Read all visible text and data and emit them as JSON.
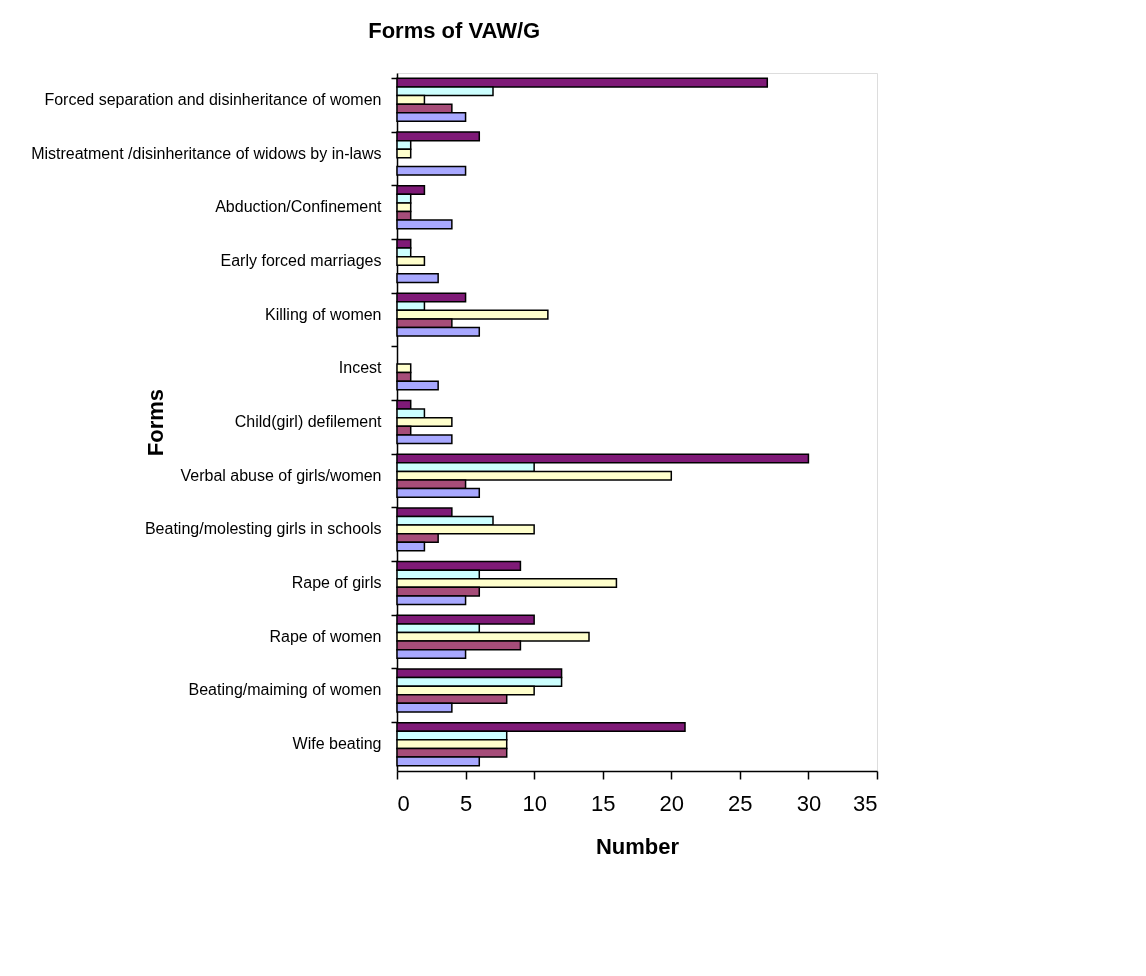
{
  "chart_data": {
    "type": "bar",
    "orientation": "horizontal",
    "title": "Forms of VAW/G",
    "xlabel": "Number",
    "ylabel": "Forms",
    "categories": [
      "Forced separation and disinheritance of women",
      "Mistreatment /disinheritance of widows by in-laws",
      "Abduction/Confinement",
      "Early forced marriages",
      "Killing of women",
      "Incest",
      "Child(girl) defilement",
      "Verbal abuse of girls/women",
      "Beating/molesting girls in schools",
      "Rape of girls",
      "Rape of women",
      "Beating/maiming of women",
      "Wife beating"
    ],
    "series": [
      {
        "color": "#7f1a77",
        "values": [
          27,
          6,
          2,
          1,
          5,
          null,
          1,
          30,
          4,
          9,
          10,
          12,
          21
        ]
      },
      {
        "color": "#ccffff",
        "values": [
          7,
          1,
          1,
          1,
          2,
          null,
          2,
          10,
          7,
          6,
          6,
          12,
          8
        ]
      },
      {
        "color": "#ffffcc",
        "values": [
          2,
          1,
          1,
          2,
          11,
          1,
          4,
          20,
          10,
          16,
          14,
          10,
          8
        ]
      },
      {
        "color": "#a64d79",
        "values": [
          4,
          null,
          1,
          null,
          4,
          1,
          1,
          5,
          3,
          6,
          9,
          8,
          8
        ]
      },
      {
        "color": "#a8a8ff",
        "values": [
          5,
          5,
          4,
          3,
          6,
          3,
          4,
          6,
          2,
          5,
          5,
          4,
          6
        ]
      }
    ],
    "xlim": [
      0,
      35
    ],
    "xticks": [
      0,
      5,
      10,
      15,
      20,
      25,
      30,
      35
    ],
    "grid": false,
    "legend": false
  }
}
